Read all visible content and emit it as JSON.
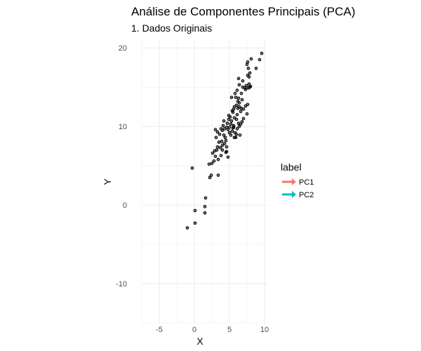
{
  "chart_data": {
    "type": "scatter",
    "title": "Análise de Componentes Principais (PCA)",
    "subtitle": "1. Dados Originais",
    "xlabel": "X",
    "ylabel": "Y",
    "xlim": [
      -7.5,
      10.5
    ],
    "ylim": [
      -15,
      21
    ],
    "x_ticks": [
      -5,
      0,
      5,
      10
    ],
    "y_ticks": [
      -10,
      0,
      10,
      20
    ],
    "x_tick_labels": [
      "-5",
      "0",
      "5",
      "10"
    ],
    "y_tick_labels": [
      "-10",
      "0",
      "10",
      "20"
    ],
    "grid": true,
    "point_color": "#000000",
    "legend": {
      "title": "label",
      "position": "right",
      "entries": [
        {
          "label": "PC1",
          "color": "#F8766D"
        },
        {
          "label": "PC2",
          "color": "#00BFC4"
        }
      ]
    },
    "points": [
      [
        -1.0,
        -2.9
      ],
      [
        0.1,
        -2.3
      ],
      [
        0.1,
        -0.7
      ],
      [
        1.5,
        -0.2
      ],
      [
        1.5,
        -1.0
      ],
      [
        1.6,
        0.9
      ],
      [
        -0.3,
        4.7
      ],
      [
        2.2,
        3.5
      ],
      [
        2.1,
        5.2
      ],
      [
        2.5,
        5.3
      ],
      [
        2.4,
        3.8
      ],
      [
        3.4,
        3.8
      ],
      [
        2.8,
        5.6
      ],
      [
        2.6,
        6.6
      ],
      [
        3.0,
        6.2
      ],
      [
        3.2,
        7.0
      ],
      [
        3.3,
        7.4
      ],
      [
        3.5,
        8.0
      ],
      [
        3.1,
        8.6
      ],
      [
        3.3,
        9.3
      ],
      [
        3.0,
        9.6
      ],
      [
        3.6,
        9.0
      ],
      [
        3.4,
        5.8
      ],
      [
        3.8,
        6.3
      ],
      [
        4.0,
        7.0
      ],
      [
        4.0,
        7.6
      ],
      [
        4.3,
        7.8
      ],
      [
        4.5,
        8.2
      ],
      [
        4.6,
        7.4
      ],
      [
        4.2,
        8.9
      ],
      [
        4.0,
        9.5
      ],
      [
        4.3,
        9.7
      ],
      [
        4.6,
        9.9
      ],
      [
        4.8,
        9.6
      ],
      [
        5.0,
        9.2
      ],
      [
        4.8,
        6.1
      ],
      [
        4.6,
        6.8
      ],
      [
        4.5,
        6.7
      ],
      [
        5.0,
        9.9
      ],
      [
        5.2,
        10.3
      ],
      [
        5.4,
        9.4
      ],
      [
        5.5,
        9.8
      ],
      [
        4.9,
        10.9
      ],
      [
        5.1,
        11.2
      ],
      [
        5.3,
        10.7
      ],
      [
        5.6,
        10.1
      ],
      [
        5.8,
        9.2
      ],
      [
        5.9,
        8.6
      ],
      [
        5.7,
        8.6
      ],
      [
        6.0,
        9.0
      ],
      [
        6.1,
        9.7
      ],
      [
        6.3,
        10.4
      ],
      [
        6.0,
        10.9
      ],
      [
        5.7,
        11.1
      ],
      [
        5.5,
        11.8
      ],
      [
        6.1,
        11.5
      ],
      [
        6.4,
        10.0
      ],
      [
        6.6,
        10.3
      ],
      [
        6.5,
        8.9
      ],
      [
        6.8,
        10.6
      ],
      [
        7.0,
        11.0
      ],
      [
        6.2,
        12.3
      ],
      [
        6.0,
        12.7
      ],
      [
        6.4,
        12.5
      ],
      [
        6.7,
        12.3
      ],
      [
        6.6,
        11.9
      ],
      [
        6.2,
        13.2
      ],
      [
        6.4,
        13.0
      ],
      [
        7.3,
        12.6
      ],
      [
        7.6,
        12.8
      ],
      [
        7.5,
        11.6
      ],
      [
        7.0,
        12.2
      ],
      [
        5.3,
        13.7
      ],
      [
        5.6,
        12.2
      ],
      [
        5.8,
        14.2
      ],
      [
        5.9,
        13.7
      ],
      [
        6.1,
        14.6
      ],
      [
        6.3,
        13.6
      ],
      [
        6.7,
        14.2
      ],
      [
        6.9,
        15.0
      ],
      [
        6.4,
        15.3
      ],
      [
        6.9,
        15.8
      ],
      [
        7.3,
        14.7
      ],
      [
        7.4,
        15.2
      ],
      [
        7.7,
        14.9
      ],
      [
        7.8,
        15.4
      ],
      [
        7.9,
        15.0
      ],
      [
        8.0,
        15.1
      ],
      [
        7.8,
        16.3
      ],
      [
        7.9,
        16.8
      ],
      [
        6.3,
        16.1
      ],
      [
        7.5,
        17.9
      ],
      [
        7.6,
        18.2
      ],
      [
        7.7,
        17.4
      ],
      [
        8.1,
        18.6
      ],
      [
        8.8,
        17.4
      ],
      [
        9.3,
        18.5
      ],
      [
        9.6,
        19.3
      ],
      [
        4.9,
        11.4
      ],
      [
        5.4,
        12.0
      ],
      [
        4.2,
        10.7
      ],
      [
        4.7,
        10.4
      ],
      [
        3.8,
        9.7
      ],
      [
        3.7,
        7.3
      ],
      [
        5.2,
        8.9
      ],
      [
        5.7,
        12.5
      ],
      [
        6.8,
        13.4
      ],
      [
        7.2,
        14.9
      ],
      [
        7.6,
        16.5
      ],
      [
        5.6,
        9.9
      ],
      [
        4.4,
        8.6
      ],
      [
        3.9,
        8.1
      ],
      [
        2.9,
        6.9
      ],
      [
        4.1,
        10.1
      ]
    ]
  }
}
